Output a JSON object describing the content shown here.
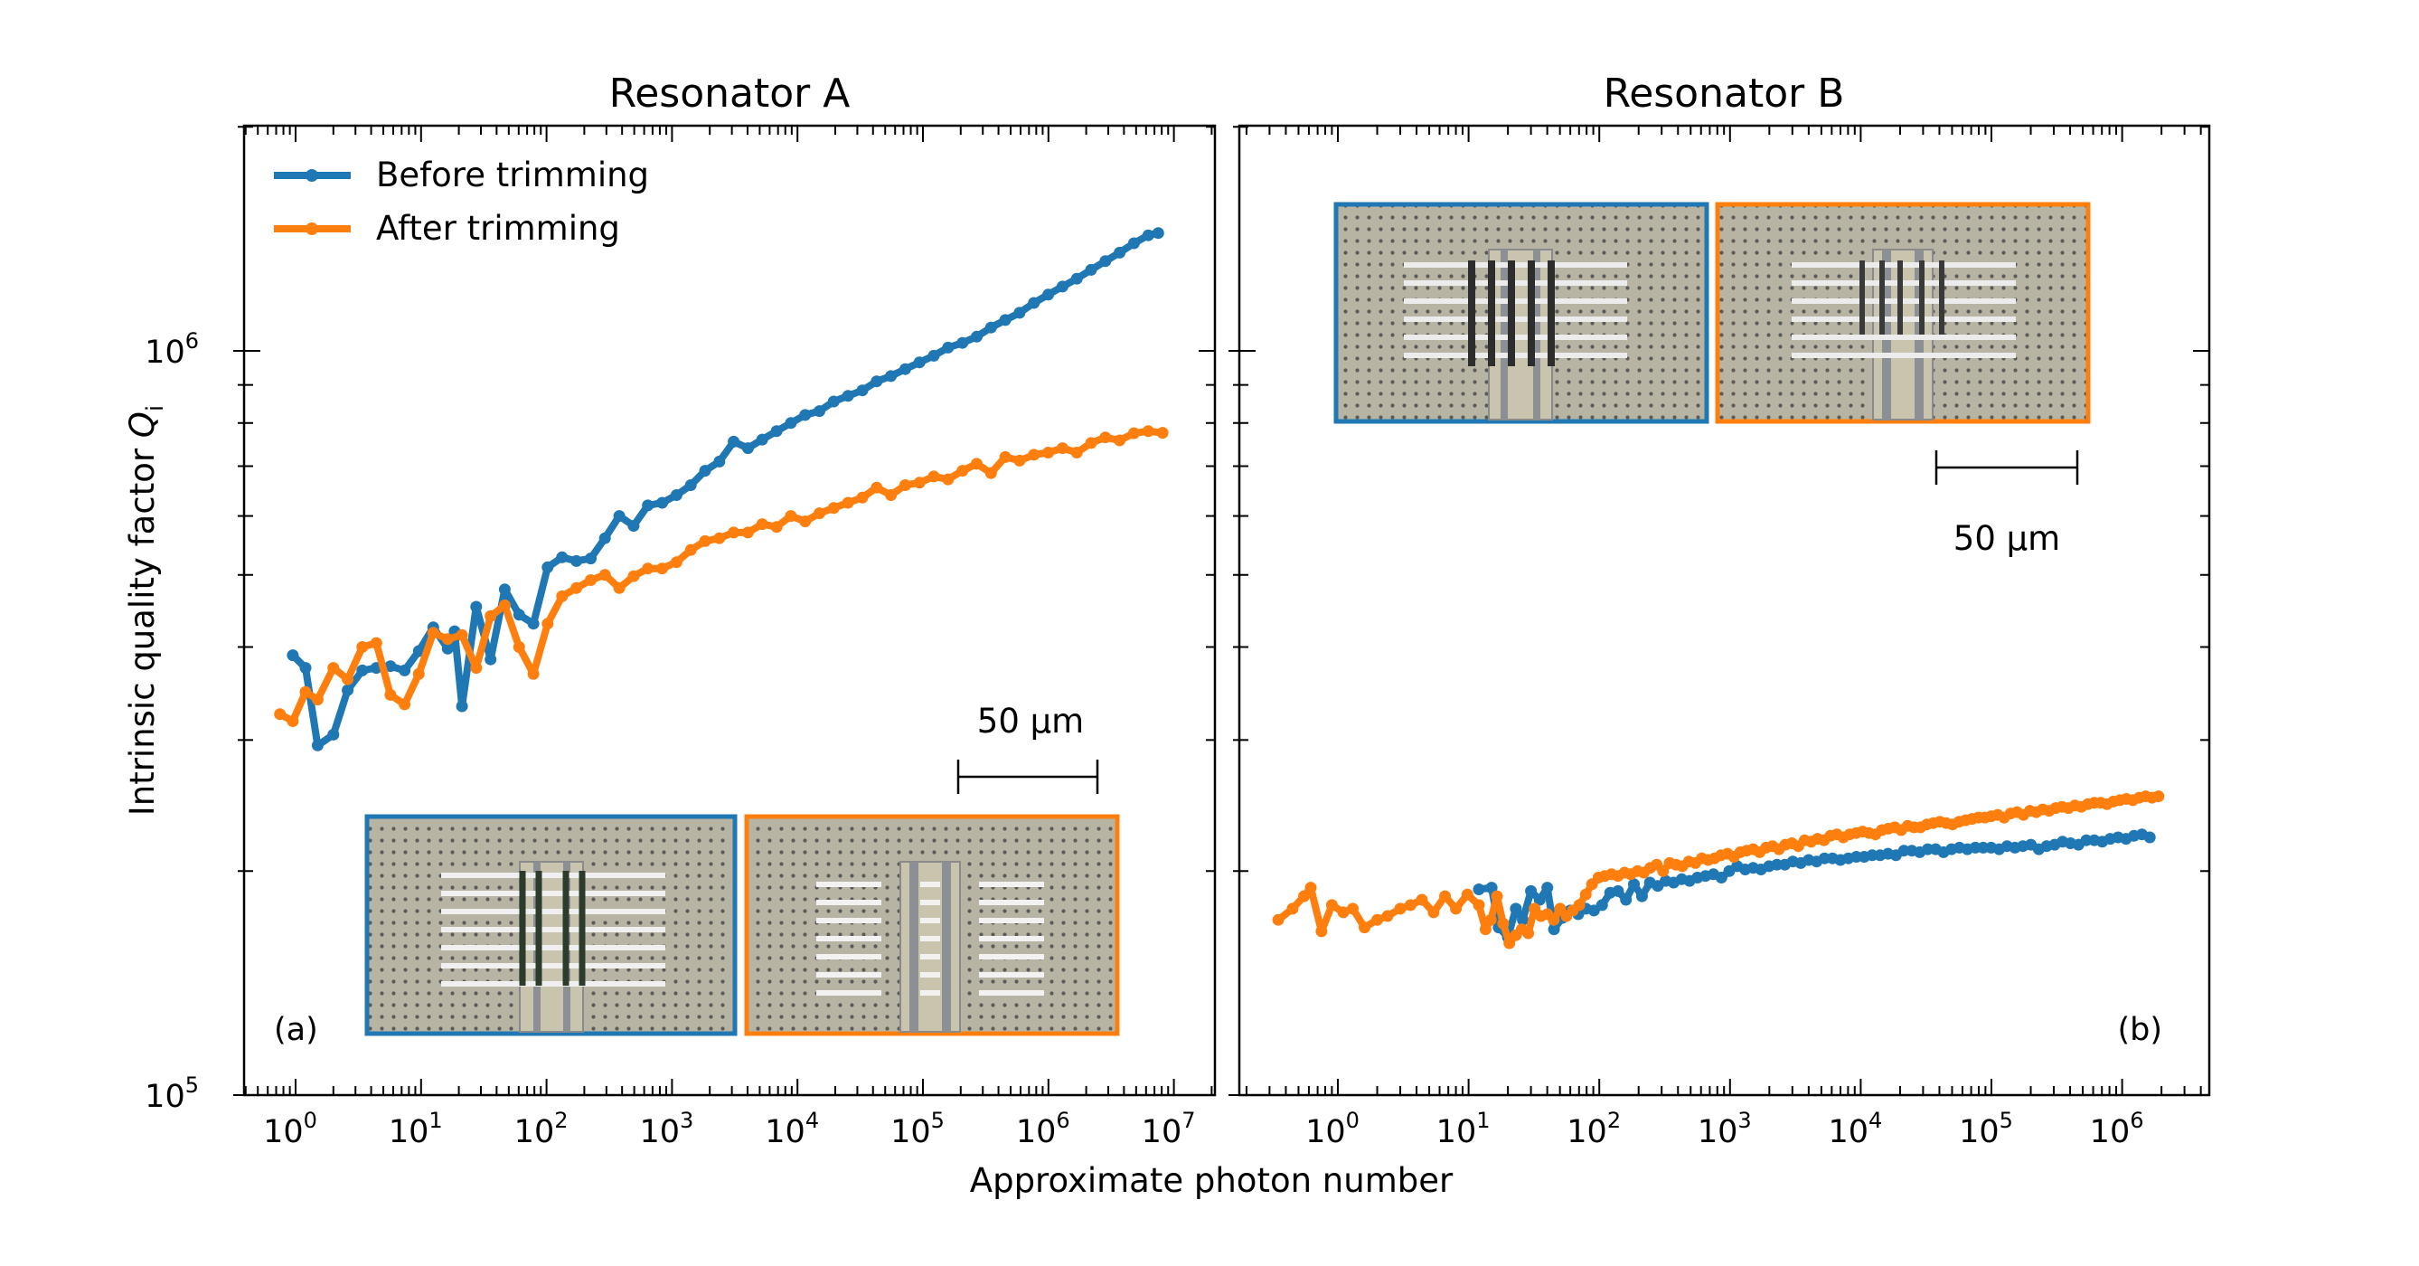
{
  "figure": {
    "xlabel": "Approximate photon number",
    "ylabel_main": "Intrinsic quality factor ",
    "ylabel_symbol": "Q",
    "ylabel_subscript": "i",
    "y_tick_labels": [
      {
        "value": 100000,
        "base": "10",
        "exp": "5"
      },
      {
        "value": 1000000,
        "base": "10",
        "exp": "6"
      }
    ],
    "colors": {
      "before": "#1f77b4",
      "after": "#ff7f0e"
    }
  },
  "legend": {
    "before_label": "Before trimming",
    "after_label": "After trimming",
    "placement": "top-left of panel (a)"
  },
  "panel_a": {
    "title": "Resonator A",
    "tag": "(a)",
    "scale_label": "50 µm",
    "x_tick_labels": [
      {
        "base": "10",
        "exp": "0"
      },
      {
        "base": "10",
        "exp": "1"
      },
      {
        "base": "10",
        "exp": "2"
      },
      {
        "base": "10",
        "exp": "3"
      },
      {
        "base": "10",
        "exp": "4"
      },
      {
        "base": "10",
        "exp": "5"
      },
      {
        "base": "10",
        "exp": "6"
      },
      {
        "base": "10",
        "exp": "7"
      }
    ]
  },
  "panel_b": {
    "title": "Resonator B",
    "tag": "(b)",
    "scale_label": "50 µm",
    "x_tick_labels": [
      {
        "base": "10",
        "exp": "0"
      },
      {
        "base": "10",
        "exp": "1"
      },
      {
        "base": "10",
        "exp": "2"
      },
      {
        "base": "10",
        "exp": "3"
      },
      {
        "base": "10",
        "exp": "4"
      },
      {
        "base": "10",
        "exp": "5"
      },
      {
        "base": "10",
        "exp": "6"
      }
    ]
  },
  "chart_data": [
    {
      "type": "line",
      "title": "Resonator A",
      "xlabel": "Approximate photon number",
      "ylabel": "Intrinsic quality factor Qi",
      "xscale": "log",
      "yscale": "log",
      "xlim": [
        0.35,
        18000000
      ],
      "ylim": [
        100000,
        1700000
      ],
      "grid": false,
      "series": [
        {
          "name": "Before trimming",
          "color": "#1f77b4",
          "x": [
            0.95,
            1.2,
            1.5,
            2.0,
            2.6,
            3.4,
            4.4,
            5.7,
            7.4,
            9.6,
            12.5,
            16.3,
            18.5,
            21.2,
            27.5,
            35.8,
            46.5,
            60.5,
            78.6,
            102,
            133,
            173,
            225,
            292,
            380,
            494,
            642,
            835,
            1086,
            1411,
            1835,
            2385,
            3101,
            4031,
            5240,
            6812,
            8856,
            11513,
            14967,
            19457,
            25294,
            32882,
            42747,
            55571,
            72242,
            93915,
            122090,
            158717,
            206332,
            268232,
            348701,
            453311,
            589304,
            766095,
            995924,
            1294701,
            1683112,
            2188045,
            2844459,
            3697797,
            4807136,
            6249277,
            7500000
          ],
          "y": [
            390000,
            375000,
            295000,
            305000,
            350000,
            372000,
            375000,
            377000,
            372000,
            395000,
            425000,
            398000,
            420000,
            333000,
            453000,
            385000,
            478000,
            442000,
            430000,
            512000,
            528000,
            522000,
            526000,
            560000,
            600000,
            582000,
            620000,
            625000,
            640000,
            660000,
            690000,
            710000,
            755000,
            740000,
            760000,
            780000,
            800000,
            820000,
            830000,
            855000,
            870000,
            885000,
            910000,
            925000,
            945000,
            965000,
            985000,
            1010000,
            1025000,
            1045000,
            1075000,
            1100000,
            1125000,
            1160000,
            1190000,
            1220000,
            1250000,
            1285000,
            1320000,
            1355000,
            1395000,
            1430000,
            1440000
          ]
        },
        {
          "name": "After trimming",
          "color": "#ff7f0e",
          "x": [
            0.75,
            0.95,
            1.2,
            1.5,
            2.0,
            2.6,
            3.4,
            4.4,
            5.7,
            7.4,
            9.6,
            12.5,
            16.3,
            21.2,
            27.5,
            35.8,
            46.5,
            60.5,
            78.6,
            102,
            133,
            173,
            225,
            292,
            380,
            494,
            642,
            835,
            1086,
            1411,
            1835,
            2385,
            3101,
            4031,
            5240,
            6812,
            8856,
            11513,
            14967,
            19457,
            25294,
            32882,
            42747,
            55571,
            72242,
            93915,
            122090,
            158717,
            206332,
            268232,
            348701,
            453311,
            589304,
            766095,
            995924,
            1294701,
            1683112,
            2188045,
            2844459,
            3697797,
            4807136,
            6249277,
            8124060
          ],
          "y": [
            325000,
            318000,
            348000,
            340000,
            375000,
            362000,
            400000,
            405000,
            345000,
            335000,
            368000,
            418000,
            410000,
            415000,
            375000,
            440000,
            455000,
            400000,
            368000,
            430000,
            468000,
            480000,
            492000,
            500000,
            480000,
            498000,
            510000,
            510000,
            520000,
            540000,
            555000,
            560000,
            570000,
            570000,
            585000,
            580000,
            600000,
            590000,
            605000,
            615000,
            625000,
            635000,
            655000,
            640000,
            660000,
            665000,
            678000,
            672000,
            690000,
            705000,
            685000,
            720000,
            712000,
            725000,
            730000,
            740000,
            730000,
            752000,
            765000,
            758000,
            775000,
            780000,
            776000
          ]
        }
      ]
    },
    {
      "type": "line",
      "title": "Resonator B",
      "xlabel": "Approximate photon number",
      "ylabel": "Intrinsic quality factor Qi",
      "xscale": "log",
      "yscale": "log",
      "xlim": [
        0.18,
        4000000
      ],
      "ylim": [
        100000,
        1700000
      ],
      "grid": false,
      "series": [
        {
          "name": "Before trimming",
          "color": "#1f77b4",
          "x": [
            12.0,
            15.0,
            17.0,
            20.0,
            23.0,
            26.0,
            30.0,
            35.0,
            40.0,
            45.0,
            52.0,
            60.0,
            69.0,
            79.0,
            91.0,
            105,
            121,
            139,
            160,
            184,
            212,
            244,
            280,
            322,
            371,
            427,
            491,
            564,
            649,
            747,
            859,
            988,
            1136,
            1307,
            1503,
            1728,
            1988,
            2286,
            2629,
            3023,
            3477,
            3998,
            4598,
            5288,
            6081,
            6993,
            8042,
            9249,
            10636,
            12232,
            14066,
            16176,
            18603,
            21393,
            24602,
            28293,
            32536,
            37417,
            43029,
            49484,
            56907,
            65443,
            75259,
            86548,
            99530,
            114460,
            131629,
            151373,
            174079,
            200190,
            230219,
            264751,
            304464,
            350134,
            402654,
            463052,
            532510,
            612386,
            704244,
            809880,
            931362,
            1071066,
            1231726,
            1416485,
            1628958
          ],
          "y": [
            189000,
            190000,
            168000,
            163000,
            178000,
            172000,
            188000,
            183000,
            190000,
            167000,
            173000,
            177000,
            175000,
            178000,
            177000,
            180000,
            187000,
            188000,
            183000,
            192000,
            185000,
            193000,
            191000,
            194000,
            193000,
            195000,
            194000,
            196000,
            197000,
            198000,
            196000,
            200000,
            203000,
            201000,
            202000,
            201000,
            203000,
            204000,
            204000,
            206000,
            205000,
            207000,
            206000,
            208000,
            208000,
            207000,
            208000,
            209000,
            209000,
            210000,
            210000,
            211000,
            210000,
            213000,
            213000,
            212000,
            214000,
            214000,
            212000,
            214000,
            215000,
            214000,
            215000,
            215000,
            215000,
            214000,
            216000,
            215000,
            216000,
            217000,
            214000,
            216000,
            217000,
            219000,
            218000,
            217000,
            220000,
            220000,
            219000,
            221000,
            222000,
            221000,
            223000,
            224000,
            222000
          ]
        },
        {
          "name": "After trimming",
          "color": "#ff7f0e",
          "x": [
            0.35,
            0.45,
            0.55,
            0.62,
            0.75,
            0.9,
            1.1,
            1.3,
            1.6,
            2.0,
            2.4,
            3.0,
            3.6,
            4.4,
            5.4,
            6.6,
            8.0,
            9.8,
            12.0,
            13.5,
            14.8,
            16.5,
            18.4,
            20.5,
            23.0,
            25.5,
            28.6,
            32.0,
            35.8,
            40.0,
            44.8,
            50.2,
            56.0,
            62.8,
            70.3,
            78.7,
            88.0,
            98.6,
            110,
            124,
            139,
            156,
            174,
            196,
            219,
            245,
            275,
            308,
            345,
            386,
            432,
            484,
            543,
            608,
            681,
            762,
            853,
            956,
            1071,
            1199,
            1343,
            1504,
            1685,
            1887,
            2114,
            2368,
            2652,
            2970,
            3327,
            3726,
            4173,
            4674,
            5235,
            5864,
            6567,
            7356,
            8238,
            9228,
            10334,
            11575,
            12964,
            14520,
            16262,
            18214,
            20400,
            22848,
            25589,
            28660,
            32099,
            35951,
            40265,
            45097,
            50509,
            56570,
            63358,
            70961,
            79477,
            89014,
            99696,
            111659,
            125058,
            140066,
            156873,
            175698,
            196782,
            220396,
            246843,
            276464,
            309640,
            346796,
            388412,
            435022,
            487224,
            545691,
            611174,
            684515,
            766657,
            858656,
            961694,
            1077097,
            1206349,
            1351111,
            1513244,
            1694833,
            1898213
          ],
          "y": [
            172000,
            178000,
            185000,
            190000,
            166000,
            180000,
            176000,
            178000,
            168000,
            172000,
            174000,
            178000,
            180000,
            183000,
            176000,
            185000,
            178000,
            186000,
            180000,
            167000,
            172000,
            185000,
            170000,
            160000,
            164000,
            167000,
            165000,
            178000,
            174000,
            175000,
            172000,
            178000,
            174000,
            177000,
            180000,
            186000,
            192000,
            196000,
            197000,
            198000,
            197000,
            199000,
            198000,
            200000,
            199000,
            202000,
            204000,
            200000,
            205000,
            204000,
            203000,
            206000,
            205000,
            208000,
            207000,
            208000,
            210000,
            211000,
            209000,
            212000,
            213000,
            214000,
            212000,
            215000,
            216000,
            214000,
            217000,
            218000,
            216000,
            220000,
            219000,
            221000,
            220000,
            223000,
            224000,
            222000,
            224000,
            225000,
            226000,
            225000,
            224000,
            227000,
            228000,
            229000,
            227000,
            230000,
            229000,
            229000,
            231000,
            232000,
            233000,
            232000,
            231000,
            233000,
            234000,
            235000,
            236000,
            236000,
            237000,
            238000,
            236000,
            239000,
            240000,
            238000,
            241000,
            240000,
            242000,
            241000,
            243000,
            244000,
            243000,
            245000,
            244000,
            246000,
            247000,
            247000,
            246000,
            248000,
            249000,
            250000,
            249000,
            251000,
            252000,
            251000,
            252000
          ]
        }
      ]
    }
  ]
}
